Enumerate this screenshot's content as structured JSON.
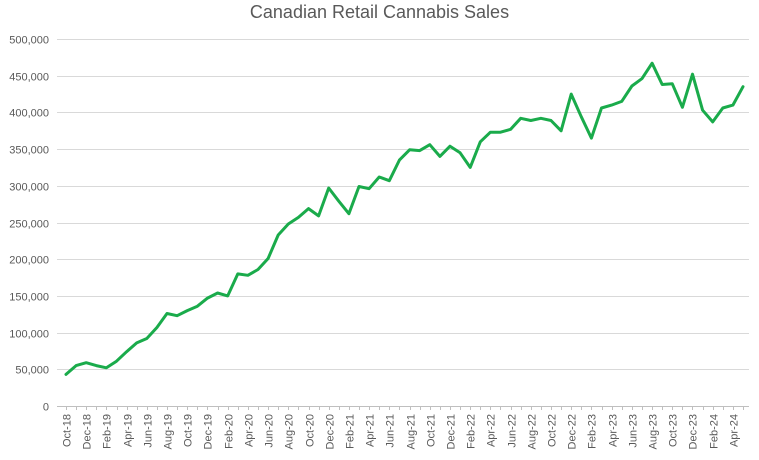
{
  "chart_data": {
    "type": "line",
    "title": "Canadian Retail Cannabis Sales",
    "xlabel": "",
    "ylabel": "",
    "ylim": [
      0,
      500000
    ],
    "yticks": [
      0,
      50000,
      100000,
      150000,
      200000,
      250000,
      300000,
      350000,
      400000,
      450000,
      500000
    ],
    "ytick_labels": [
      "0",
      "50,000",
      "100,000",
      "150,000",
      "200,000",
      "250,000",
      "300,000",
      "350,000",
      "400,000",
      "450,000",
      "500,000"
    ],
    "grid": "horizontal",
    "legend": "none",
    "colors": {
      "line": "#1aab4b",
      "grid": "#d9d9d9",
      "axis": "#bfbfbf",
      "text": "#595959"
    },
    "x": [
      "Oct-18",
      "Nov-18",
      "Dec-18",
      "Jan-19",
      "Feb-19",
      "Mar-19",
      "Apr-19",
      "May-19",
      "Jun-19",
      "Jul-19",
      "Aug-19",
      "Sep-19",
      "Oct-19",
      "Nov-19",
      "Dec-19",
      "Jan-20",
      "Feb-20",
      "Mar-20",
      "Apr-20",
      "May-20",
      "Jun-20",
      "Jul-20",
      "Aug-20",
      "Sep-20",
      "Oct-20",
      "Nov-20",
      "Dec-20",
      "Jan-21",
      "Feb-21",
      "Mar-21",
      "Apr-21",
      "May-21",
      "Jun-21",
      "Jul-21",
      "Aug-21",
      "Sep-21",
      "Oct-21",
      "Nov-21",
      "Dec-21",
      "Jan-22",
      "Feb-22",
      "Mar-22",
      "Apr-22",
      "May-22",
      "Jun-22",
      "Jul-22",
      "Aug-22",
      "Sep-22",
      "Oct-22",
      "Nov-22",
      "Dec-22",
      "Jan-23",
      "Feb-23",
      "Mar-23",
      "Apr-23",
      "May-23",
      "Jun-23",
      "Jul-23",
      "Aug-23",
      "Sep-23",
      "Oct-23",
      "Nov-23",
      "Dec-23",
      "Jan-24",
      "Feb-24",
      "Mar-24",
      "Apr-24",
      "May-24"
    ],
    "x_tick_labels": [
      "Oct-18",
      "Dec-18",
      "Feb-19",
      "Apr-19",
      "Jun-19",
      "Aug-19",
      "Oct-19",
      "Dec-19",
      "Feb-20",
      "Apr-20",
      "Jun-20",
      "Aug-20",
      "Oct-20",
      "Dec-20",
      "Feb-21",
      "Apr-21",
      "Jun-21",
      "Aug-21",
      "Oct-21",
      "Dec-21",
      "Feb-22",
      "Apr-22",
      "Jun-22",
      "Aug-22",
      "Oct-22",
      "Dec-22",
      "Feb-23",
      "Apr-23",
      "Jun-23",
      "Aug-23",
      "Oct-23",
      "Dec-23",
      "Feb-24",
      "Apr-24"
    ],
    "series": [
      {
        "values": [
          43000,
          55000,
          59000,
          55000,
          52000,
          61000,
          74000,
          86000,
          92000,
          107000,
          126000,
          123000,
          130000,
          136000,
          147000,
          154000,
          150000,
          180000,
          178000,
          186000,
          201000,
          233000,
          248000,
          257000,
          269000,
          259000,
          297000,
          279000,
          262000,
          299000,
          296000,
          312000,
          307000,
          335000,
          349000,
          348000,
          356000,
          340000,
          354000,
          345000,
          325000,
          360000,
          373000,
          373000,
          377000,
          392000,
          389000,
          392000,
          389000,
          375000,
          425000,
          394000,
          365000,
          406000,
          410000,
          415000,
          436000,
          446000,
          467000,
          438000,
          439000,
          407000,
          452000,
          403000,
          387000,
          406000,
          410000,
          435000
        ]
      }
    ]
  }
}
